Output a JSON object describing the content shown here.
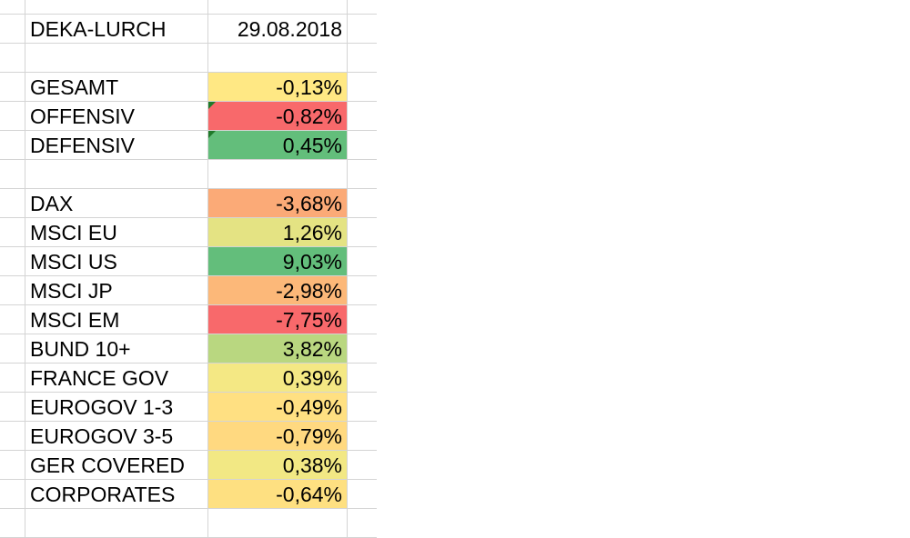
{
  "header": {
    "title": "DEKA-LURCH",
    "date": "29.08.2018"
  },
  "summary": [
    {
      "label": "GESAMT",
      "value": "-0,13%",
      "color": "#ffe884",
      "note": false
    },
    {
      "label": "OFFENSIV",
      "value": "-0,82%",
      "color": "#f8696b",
      "note": true
    },
    {
      "label": "DEFENSIV",
      "value": "0,45%",
      "color": "#63be7b",
      "note": true
    }
  ],
  "indices": [
    {
      "label": "DAX",
      "value": "-3,68%",
      "color": "#fbaa77"
    },
    {
      "label": "MSCI EU",
      "value": "1,26%",
      "color": "#e4e383"
    },
    {
      "label": "MSCI US",
      "value": "9,03%",
      "color": "#63be7b"
    },
    {
      "label": "MSCI JP",
      "value": "-2,98%",
      "color": "#fcb879"
    },
    {
      "label": "MSCI EM",
      "value": "-7,75%",
      "color": "#f8696b"
    },
    {
      "label": "BUND 10+",
      "value": "3,82%",
      "color": "#b9d780"
    },
    {
      "label": "FRANCE GOV",
      "value": "0,39%",
      "color": "#f4e884"
    },
    {
      "label": "EUROGOV 1-3",
      "value": "-0,49%",
      "color": "#ffe082"
    },
    {
      "label": "EUROGOV 3-5",
      "value": "-0,79%",
      "color": "#ffd980"
    },
    {
      "label": "GER COVERED",
      "value": "0,38%",
      "color": "#f2e884"
    },
    {
      "label": "CORPORATES",
      "value": "-0,64%",
      "color": "#fee081"
    }
  ]
}
